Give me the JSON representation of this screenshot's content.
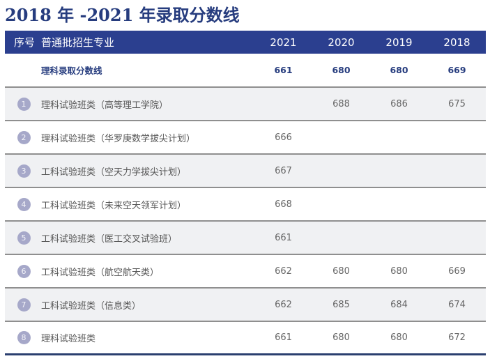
{
  "title": "2018 年 -2021 年录取分数线",
  "table": {
    "headers": {
      "seq": "序号",
      "major": "普通批招生专业",
      "years": [
        "2021",
        "2020",
        "2019",
        "2018"
      ]
    },
    "summary": {
      "label": "理科录取分数线",
      "values": [
        "661",
        "680",
        "680",
        "669"
      ]
    },
    "rows": [
      {
        "no": "1",
        "major": "理科试验班类（高等理工学院）",
        "values": [
          "",
          "688",
          "686",
          "675"
        ]
      },
      {
        "no": "2",
        "major": "理科试验班类（华罗庚数学拔尖计划）",
        "values": [
          "666",
          "",
          "",
          ""
        ]
      },
      {
        "no": "3",
        "major": "工科试验班类（空天力学拔尖计划）",
        "values": [
          "667",
          "",
          "",
          ""
        ]
      },
      {
        "no": "4",
        "major": "工科试验班类（未来空天领军计划）",
        "values": [
          "668",
          "",
          "",
          ""
        ]
      },
      {
        "no": "5",
        "major": "工科试验班类（医工交叉试验班）",
        "values": [
          "661",
          "",
          "",
          ""
        ]
      },
      {
        "no": "6",
        "major": "工科试验班类（航空航天类）",
        "values": [
          "662",
          "680",
          "680",
          "669"
        ]
      },
      {
        "no": "7",
        "major": "工科试验班类（信息类）",
        "values": [
          "662",
          "685",
          "684",
          "674"
        ]
      },
      {
        "no": "8",
        "major": "理科试验班类",
        "values": [
          "661",
          "680",
          "680",
          "672"
        ]
      }
    ]
  },
  "colors": {
    "header_bg": "#2b3f8f",
    "title": "#263c7e",
    "row_shade": "#f0f1f3",
    "badge": "#a6a8c9"
  }
}
